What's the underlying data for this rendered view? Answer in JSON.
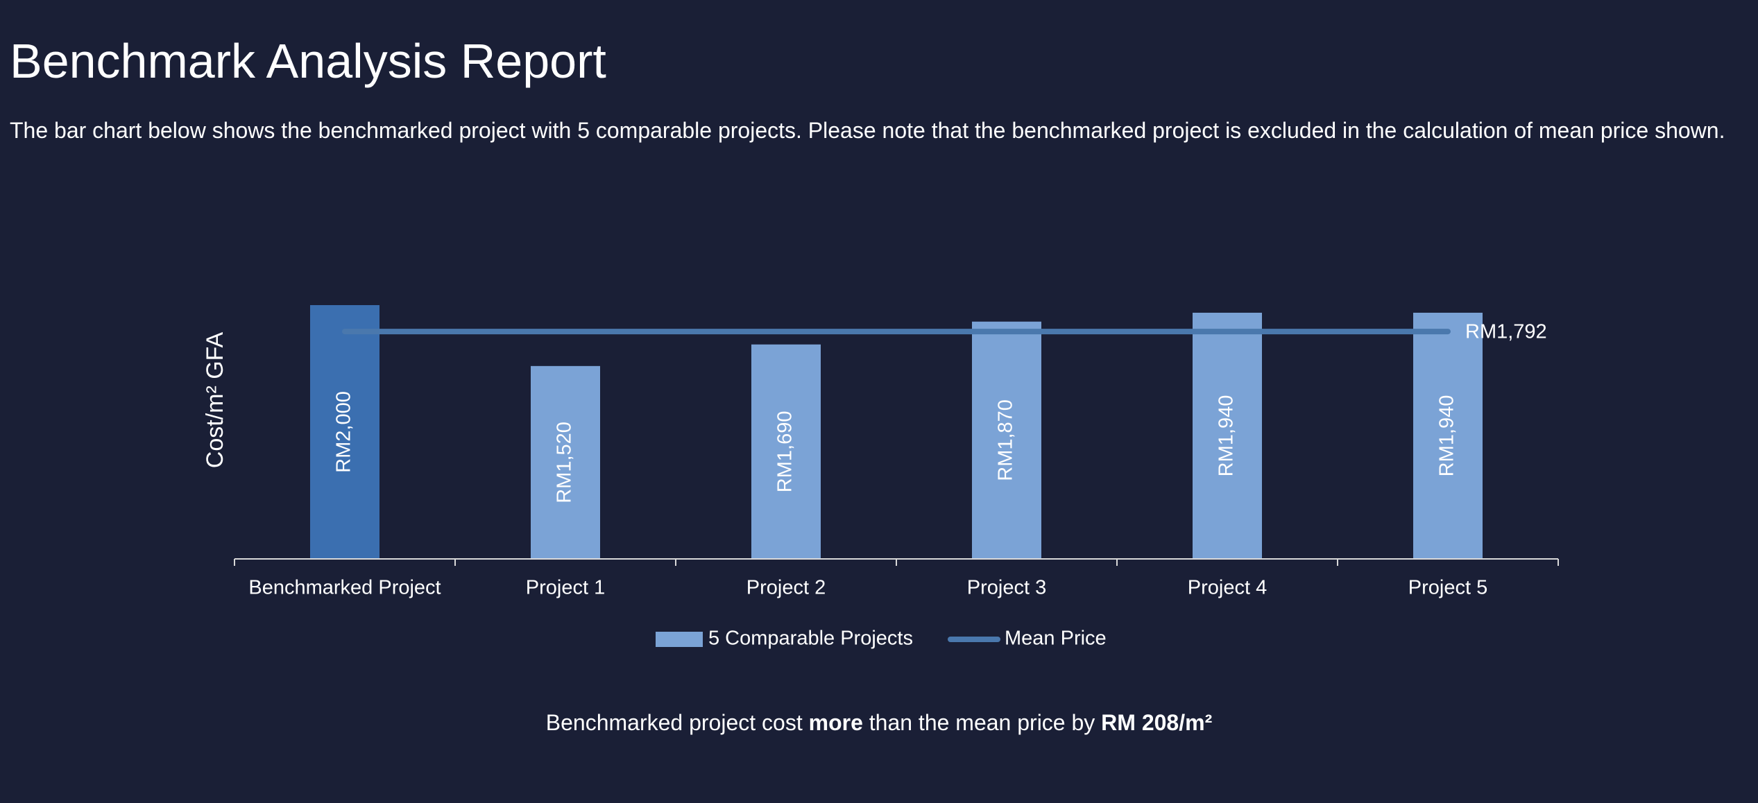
{
  "title": "Benchmark Analysis Report",
  "intro": "The bar chart below shows the benchmarked project with 5 comparable projects. Please note that the benchmarked project is excluded in the calculation of mean price shown.",
  "chart_data": {
    "type": "bar",
    "y_label": "Cost/m² GFA",
    "categories": [
      "Benchmarked Project",
      "Project 1",
      "Project 2",
      "Project 3",
      "Project 4",
      "Project 5"
    ],
    "series": [
      {
        "name": "5 Comparable Projects",
        "color": "#7ba3d6",
        "bar_colors": [
          "#3b6fb0",
          "#7ba3d6",
          "#7ba3d6",
          "#7ba3d6",
          "#7ba3d6",
          "#7ba3d6"
        ],
        "values": [
          2000,
          1520,
          1690,
          1870,
          1940,
          1940
        ],
        "value_labels": [
          "RM2,000",
          "RM1,520",
          "RM1,690",
          "RM1,870",
          "RM1,940",
          "RM1,940"
        ]
      }
    ],
    "mean": {
      "name": "Mean Price",
      "value": 1792,
      "value_label": "RM1,792",
      "color": "#4a78ad"
    }
  },
  "summary": {
    "parts": [
      "Benchmarked project cost ",
      "more",
      " than the mean price by ",
      "RM 208/m²"
    ]
  }
}
